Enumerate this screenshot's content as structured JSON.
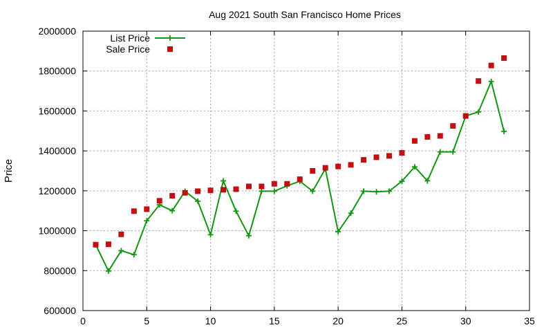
{
  "chart_data": {
    "type": "line",
    "title": "Aug 2021 South San Francisco Home Prices",
    "xlabel": "",
    "ylabel": "Price",
    "xlim": [
      0,
      35
    ],
    "ylim": [
      600000,
      2000000
    ],
    "xticks": [
      0,
      5,
      10,
      15,
      20,
      25,
      30,
      35
    ],
    "yticks": [
      600000,
      800000,
      1000000,
      1200000,
      1400000,
      1600000,
      1800000,
      2000000
    ],
    "grid": true,
    "legend_position": "top-left",
    "x": [
      1,
      2,
      3,
      4,
      5,
      6,
      7,
      8,
      9,
      10,
      11,
      12,
      13,
      14,
      15,
      16,
      17,
      18,
      19,
      20,
      21,
      22,
      23,
      24,
      25,
      26,
      27,
      28,
      29,
      30,
      31,
      32,
      33
    ],
    "series": [
      {
        "name": "List Price",
        "style": "line-with-plus-markers",
        "color": "#109610",
        "values": [
          930000,
          798000,
          900000,
          880000,
          1050000,
          1130000,
          1100000,
          1198000,
          1148000,
          980000,
          1250000,
          1098000,
          975000,
          1198000,
          1198000,
          1225000,
          1248000,
          1198000,
          1310000,
          995000,
          1088000,
          1198000,
          1195000,
          1198000,
          1248000,
          1320000,
          1250000,
          1395000,
          1395000,
          1575000,
          1595000,
          1748000,
          1498000
        ]
      },
      {
        "name": "Sale Price",
        "style": "square-markers",
        "color": "#c01010",
        "values": [
          930000,
          932000,
          982000,
          1098000,
          1108000,
          1150000,
          1175000,
          1190000,
          1198000,
          1202000,
          1205000,
          1208000,
          1222000,
          1222000,
          1235000,
          1235000,
          1258000,
          1300000,
          1315000,
          1322000,
          1330000,
          1355000,
          1368000,
          1375000,
          1390000,
          1450000,
          1470000,
          1475000,
          1525000,
          1575000,
          1750000,
          1828000,
          1865000
        ]
      }
    ]
  }
}
